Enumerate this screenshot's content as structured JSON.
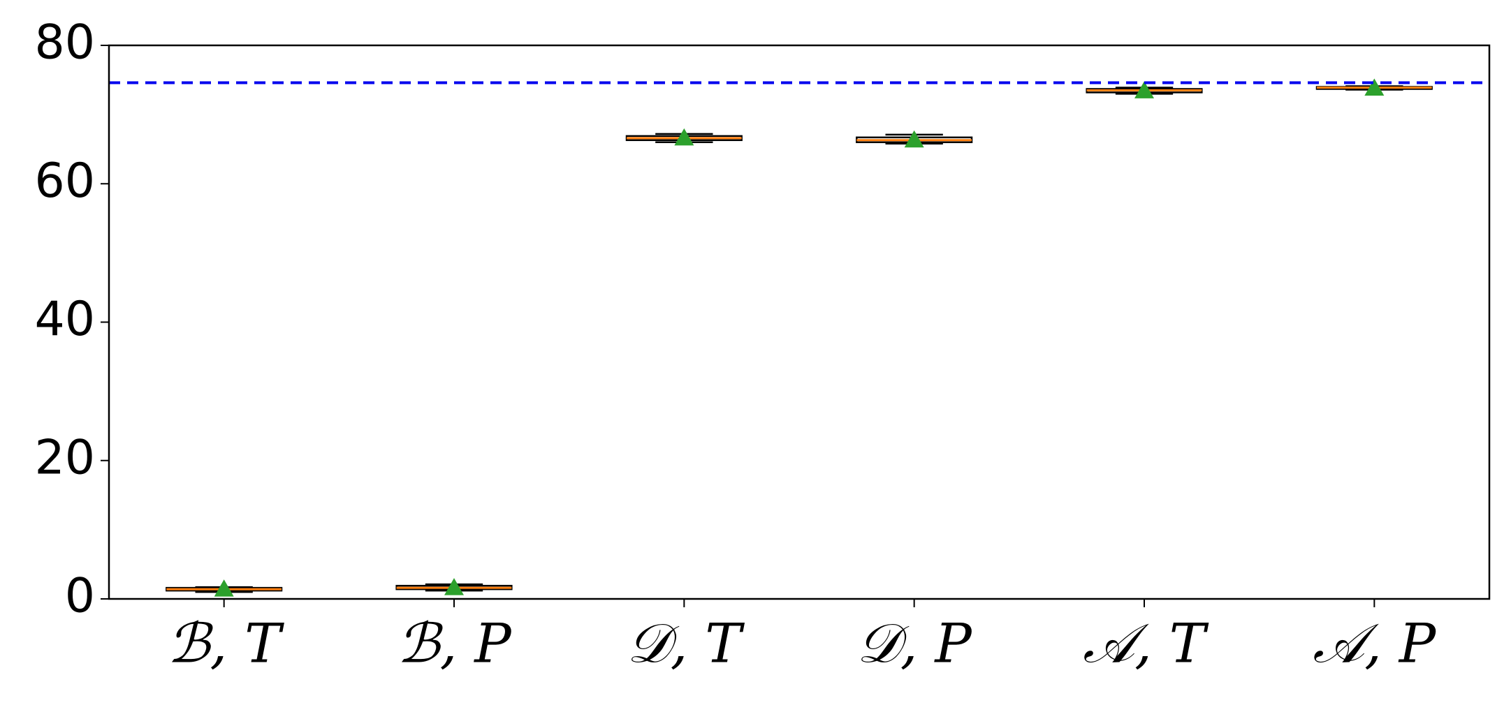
{
  "chart_data": {
    "type": "box",
    "categories": [
      "ℬ, T",
      "ℬ, P",
      "𝒟, T",
      "𝒟, P",
      "𝒜, T",
      "𝒜, P"
    ],
    "boxes": [
      {
        "min": 1.0,
        "q1": 1.2,
        "median": 1.4,
        "q3": 1.6,
        "max": 1.7,
        "mean": 1.4
      },
      {
        "min": 1.2,
        "q1": 1.4,
        "median": 1.6,
        "q3": 1.9,
        "max": 2.1,
        "mean": 1.6
      },
      {
        "min": 66.0,
        "q1": 66.3,
        "median": 66.6,
        "q3": 66.9,
        "max": 67.2,
        "mean": 66.6
      },
      {
        "min": 65.8,
        "q1": 66.0,
        "median": 66.3,
        "q3": 66.7,
        "max": 67.1,
        "mean": 66.3
      },
      {
        "min": 73.0,
        "q1": 73.2,
        "median": 73.5,
        "q3": 73.7,
        "max": 73.9,
        "mean": 73.4
      },
      {
        "min": 73.6,
        "q1": 73.7,
        "median": 73.9,
        "q3": 74.0,
        "max": 74.1,
        "mean": 73.8
      }
    ],
    "box_color": "#000000",
    "median_color": "#ff7f0e",
    "mean_color": "#2ca02c",
    "hline": {
      "value": 74.6,
      "color": "#0000ee"
    },
    "ylim": [
      0,
      80
    ],
    "yticks": [
      0,
      20,
      40,
      60,
      80
    ],
    "grid": false
  }
}
